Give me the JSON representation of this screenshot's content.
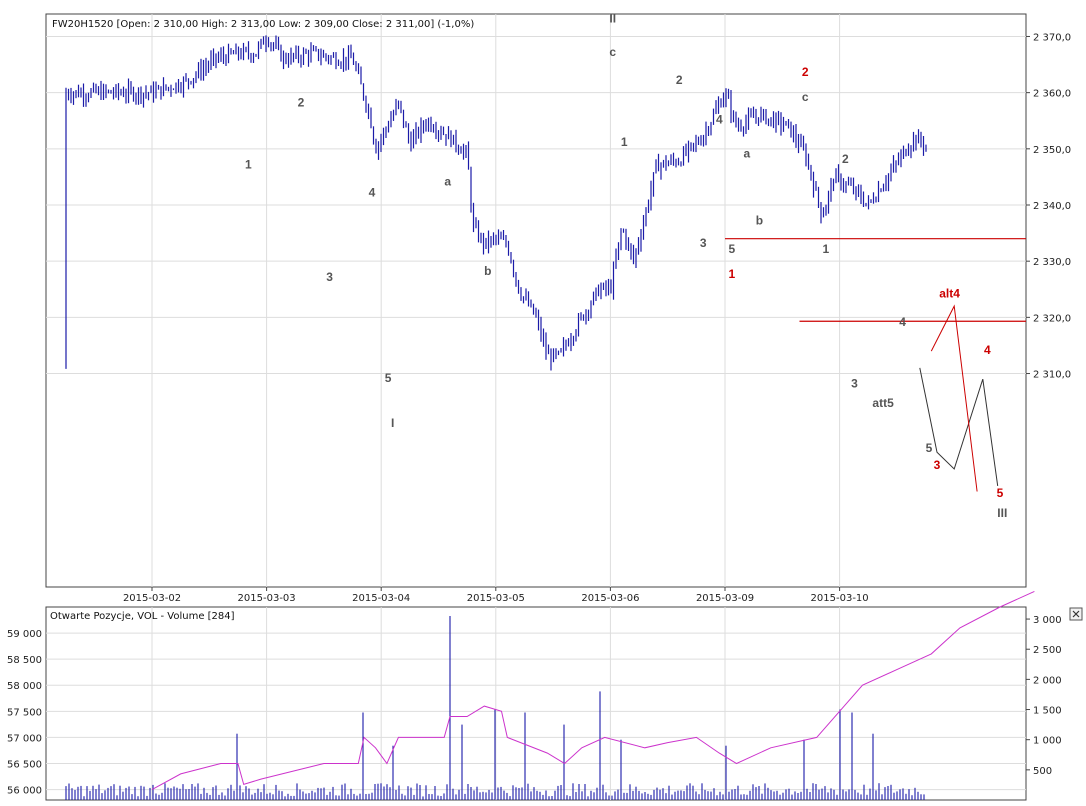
{
  "chart_data": [
    {
      "type": "candlestick",
      "title": "FW20H1520 [Open: 2 310,00  High: 2 313,00  Low: 2 309,00  Close: 2 311,00] (-1,0%)",
      "instrument": "FW20H1520",
      "ohlc_header": {
        "open": 2310.0,
        "high": 2313.0,
        "low": 2309.0,
        "close": 2311.0,
        "change_pct": -1.0
      },
      "x_ticks": [
        "2015-03-02",
        "2015-03-03",
        "2015-03-04",
        "2015-03-05",
        "2015-03-06",
        "2015-03-09",
        "2015-03-10"
      ],
      "y_ticks": [
        "2 310,0",
        "2 320,0",
        "2 330,0",
        "2 340,0",
        "2 350,0",
        "2 360,0",
        "2 370,0"
      ],
      "y_tick_values": [
        2310,
        2320,
        2330,
        2340,
        2350,
        2360,
        2370
      ],
      "ylim": [
        2272,
        2374
      ],
      "grid": true,
      "bar_color": "#1a1aa8",
      "price_path": [
        [
          0.0,
          2360
        ],
        [
          0.3,
          2362
        ],
        [
          0.55,
          2366
        ],
        [
          0.75,
          2367
        ],
        [
          0.9,
          2367
        ],
        [
          1.0,
          2370
        ],
        [
          1.15,
          2366
        ],
        [
          1.4,
          2367
        ],
        [
          1.6,
          2366
        ],
        [
          1.75,
          2366
        ],
        [
          1.9,
          2356
        ],
        [
          1.95,
          2350
        ],
        [
          2.1,
          2356
        ],
        [
          2.15,
          2358
        ],
        [
          2.25,
          2351
        ],
        [
          2.4,
          2355
        ],
        [
          2.6,
          2352
        ],
        [
          2.75,
          2349
        ],
        [
          2.8,
          2336
        ],
        [
          2.9,
          2333
        ],
        [
          3.0,
          2334
        ],
        [
          3.1,
          2333
        ],
        [
          3.2,
          2325
        ],
        [
          3.35,
          2320
        ],
        [
          3.45,
          2313
        ],
        [
          3.55,
          2313
        ],
        [
          3.75,
          2320
        ],
        [
          3.9,
          2325
        ],
        [
          4.0,
          2325
        ],
        [
          4.1,
          2336
        ],
        [
          4.2,
          2330
        ],
        [
          4.3,
          2338
        ],
        [
          4.4,
          2347
        ],
        [
          4.6,
          2348
        ],
        [
          4.8,
          2352
        ],
        [
          5.0,
          2360
        ],
        [
          5.1,
          2354
        ],
        [
          5.3,
          2356
        ],
        [
          5.55,
          2354
        ],
        [
          5.7,
          2349
        ],
        [
          5.85,
          2338
        ],
        [
          5.95,
          2345
        ],
        [
          6.1,
          2343
        ],
        [
          6.25,
          2340
        ],
        [
          6.45,
          2346
        ],
        [
          6.65,
          2352
        ],
        [
          6.8,
          2350
        ],
        [
          6.85,
          2344
        ],
        [
          6.9,
          2335
        ],
        [
          7.0,
          2333
        ],
        [
          7.1,
          2318
        ],
        [
          7.2,
          2312
        ],
        [
          7.35,
          2318
        ],
        [
          7.5,
          2315
        ],
        [
          7.7,
          2312
        ],
        [
          7.8,
          2311
        ]
      ],
      "wave_labels": [
        {
          "text": "1",
          "x": 0.84,
          "y": 2346.5,
          "color": "#555555"
        },
        {
          "text": "2",
          "x": 1.3,
          "y": 2357.5,
          "color": "#555555"
        },
        {
          "text": "3",
          "x": 1.55,
          "y": 2326.5,
          "color": "#555555"
        },
        {
          "text": "4",
          "x": 1.92,
          "y": 2341.5,
          "color": "#555555"
        },
        {
          "text": "5",
          "x": 2.06,
          "y": 2308.5,
          "color": "#555555"
        },
        {
          "text": "I",
          "x": 2.1,
          "y": 2300.5,
          "color": "#555555"
        },
        {
          "text": "a",
          "x": 2.58,
          "y": 2343.5,
          "color": "#555555"
        },
        {
          "text": "b",
          "x": 2.93,
          "y": 2327.5,
          "color": "#555555"
        },
        {
          "text": "II",
          "x": 4.02,
          "y": 2372.5,
          "color": "#555555"
        },
        {
          "text": "c",
          "x": 4.02,
          "y": 2366.5,
          "color": "#555555"
        },
        {
          "text": "1",
          "x": 4.12,
          "y": 2350.5,
          "color": "#555555"
        },
        {
          "text": "2",
          "x": 4.6,
          "y": 2361.5,
          "color": "#555555"
        },
        {
          "text": "4",
          "x": 4.95,
          "y": 2354.5,
          "color": "#555555"
        },
        {
          "text": "3",
          "x": 4.81,
          "y": 2332.5,
          "color": "#555555"
        },
        {
          "text": "5",
          "x": 5.06,
          "y": 2331.5,
          "color": "#555555"
        },
        {
          "text": "1",
          "x": 5.06,
          "y": 2327,
          "color": "#cc0000"
        },
        {
          "text": "a",
          "x": 5.19,
          "y": 2348.5,
          "color": "#555555"
        },
        {
          "text": "b",
          "x": 5.3,
          "y": 2336.5,
          "color": "#555555"
        },
        {
          "text": "2",
          "x": 5.7,
          "y": 2363,
          "color": "#cc0000"
        },
        {
          "text": "c",
          "x": 5.7,
          "y": 2358.5,
          "color": "#555555"
        },
        {
          "text": "2",
          "x": 6.05,
          "y": 2347.5,
          "color": "#555555"
        },
        {
          "text": "1",
          "x": 5.88,
          "y": 2331.5,
          "color": "#555555"
        },
        {
          "text": "4",
          "x": 6.55,
          "y": 2318.5,
          "color": "#555555"
        },
        {
          "text": "3",
          "x": 6.13,
          "y": 2307.5,
          "color": "#555555"
        },
        {
          "text": "att5",
          "x": 6.38,
          "y": 2304,
          "color": "#555555"
        },
        {
          "text": "alt4",
          "x": 6.96,
          "y": 2323.5,
          "color": "#cc0000"
        },
        {
          "text": "4",
          "x": 7.29,
          "y": 2313.5,
          "color": "#cc0000"
        },
        {
          "text": "5",
          "x": 6.78,
          "y": 2296,
          "color": "#555555"
        },
        {
          "text": "3",
          "x": 6.85,
          "y": 2293,
          "color": "#cc0000"
        },
        {
          "text": "5",
          "x": 7.4,
          "y": 2288,
          "color": "#cc0000"
        },
        {
          "text": "III",
          "x": 7.42,
          "y": 2284.5,
          "color": "#555555"
        }
      ],
      "horizontal_lines": [
        {
          "from_x": 5.0,
          "to_x": 7.7,
          "y": 2334,
          "color": "#cc0000"
        },
        {
          "from_x": 5.65,
          "to_x": 7.7,
          "y": 2319.3,
          "color": "#cc0000"
        }
      ],
      "projection_paths": [
        {
          "color": "#333333",
          "points": [
            [
              6.7,
              2311
            ],
            [
              6.85,
              2296
            ],
            [
              7.0,
              2293
            ],
            [
              7.25,
              2309
            ],
            [
              7.38,
              2290
            ]
          ]
        },
        {
          "color": "#cc0000",
          "points": [
            [
              6.8,
              2314
            ],
            [
              7.0,
              2322
            ],
            [
              7.2,
              2289
            ]
          ]
        }
      ]
    },
    {
      "type": "bar+line",
      "title": "Otwarte Pozycje, VOL - Volume [284]",
      "x_ticks": [
        "2015-03-02",
        "2015-03-03",
        "2015-03-04",
        "2015-03-05",
        "2015-03-06",
        "2015-03-09",
        "2015-03-10"
      ],
      "left_axis": {
        "ticks": [
          "56 000",
          "56 500",
          "57 000",
          "57 500",
          "58 000",
          "58 500",
          "59 000"
        ],
        "values": [
          56000,
          56500,
          57000,
          57500,
          58000,
          58500,
          59000
        ],
        "ylim": [
          55800,
          59500
        ],
        "label": "Otwarte Pozycje"
      },
      "right_axis": {
        "ticks": [
          "500",
          "1 000",
          "1 500",
          "2 000",
          "2 500",
          "3 000"
        ],
        "values": [
          500,
          1000,
          1500,
          2000,
          2500,
          3000
        ],
        "ylim": [
          0,
          3200
        ],
        "label": "Volume"
      },
      "volume_color": "#1a1aa8",
      "open_interest_color": "#cc33cc",
      "volume_spikes": [
        [
          0.0,
          250
        ],
        [
          0.75,
          1100
        ],
        [
          1.85,
          1450
        ],
        [
          2.1,
          900
        ],
        [
          2.6,
          3050
        ],
        [
          2.7,
          1250
        ],
        [
          3.0,
          1500
        ],
        [
          3.25,
          1450
        ],
        [
          3.6,
          1250
        ],
        [
          3.9,
          1800
        ],
        [
          4.1,
          1000
        ],
        [
          5.0,
          900
        ],
        [
          5.7,
          1000
        ],
        [
          6.0,
          1500
        ],
        [
          6.1,
          1450
        ],
        [
          6.3,
          1100
        ]
      ],
      "open_interest": [
        [
          0.0,
          56000
        ],
        [
          0.25,
          56300
        ],
        [
          0.6,
          56500
        ],
        [
          0.75,
          56500
        ],
        [
          0.8,
          56100
        ],
        [
          0.95,
          56200
        ],
        [
          1.5,
          56500
        ],
        [
          1.8,
          56500
        ],
        [
          1.85,
          57000
        ],
        [
          1.95,
          56800
        ],
        [
          2.05,
          56500
        ],
        [
          2.15,
          57000
        ],
        [
          2.55,
          57000
        ],
        [
          2.6,
          57400
        ],
        [
          2.75,
          57400
        ],
        [
          2.9,
          57600
        ],
        [
          3.05,
          57500
        ],
        [
          3.1,
          57000
        ],
        [
          3.45,
          56700
        ],
        [
          3.6,
          56500
        ],
        [
          3.75,
          56800
        ],
        [
          3.95,
          57000
        ],
        [
          4.3,
          56800
        ],
        [
          4.5,
          56900
        ],
        [
          4.75,
          57000
        ],
        [
          4.95,
          56700
        ],
        [
          5.1,
          56500
        ],
        [
          5.4,
          56800
        ],
        [
          5.8,
          57000
        ],
        [
          6.0,
          57500
        ],
        [
          6.2,
          58000
        ],
        [
          6.5,
          58300
        ],
        [
          6.8,
          58600
        ],
        [
          7.05,
          59100
        ],
        [
          7.4,
          59500
        ],
        [
          7.7,
          59800
        ]
      ]
    }
  ]
}
